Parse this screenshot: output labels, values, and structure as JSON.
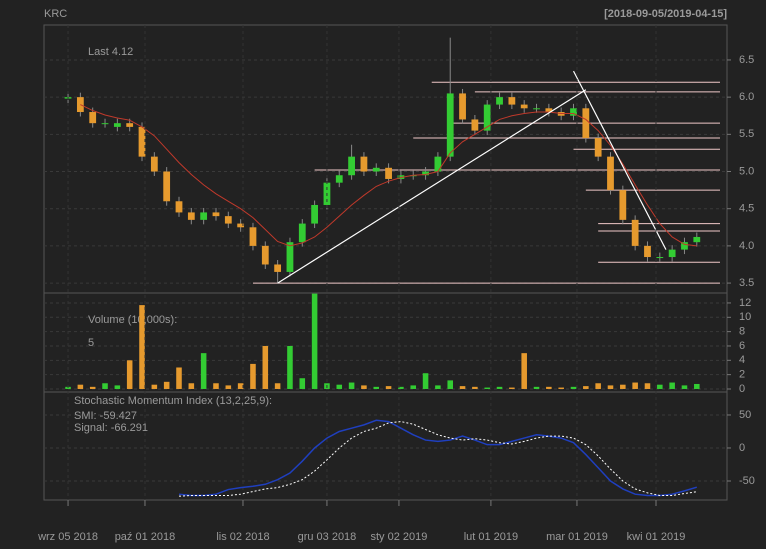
{
  "chart_data": [
    {
      "type": "candlestick",
      "title": "KRC",
      "subtitle": "[2018-09-05/2019-04-15]",
      "annotation": "Last 4.12",
      "up_color": "#33cc33",
      "down_color": "#e69a2e",
      "xlim": [
        -1.95,
        53.45
      ],
      "ylim": [
        3.38,
        6.97
      ],
      "yticks": [
        3.5,
        {
          "value": 4,
          "label": "4.0"
        },
        4.5,
        {
          "value": 5,
          "label": "5.0"
        },
        5.5,
        {
          "value": 6,
          "label": "6.0"
        },
        6.5
      ],
      "grid": true,
      "open": [
        5.98,
        6.0,
        5.8,
        5.65,
        5.6,
        5.65,
        5.6,
        5.2,
        5.0,
        4.6,
        4.45,
        4.35,
        4.45,
        4.4,
        4.3,
        4.25,
        4.0,
        3.75,
        3.65,
        4.05,
        4.3,
        4.55,
        4.85,
        4.95,
        5.2,
        5.0,
        5.05,
        4.9,
        4.95,
        4.95,
        5.0,
        5.2,
        6.05,
        5.7,
        5.55,
        5.9,
        6.0,
        5.9,
        5.85,
        5.85,
        5.8,
        5.75,
        5.85,
        5.45,
        5.2,
        4.75,
        4.35,
        4.0,
        3.85,
        3.85,
        3.95,
        4.05
      ],
      "high": [
        6.06,
        6.06,
        5.86,
        5.71,
        5.71,
        5.71,
        5.66,
        5.26,
        5.06,
        4.66,
        4.51,
        4.51,
        4.51,
        4.46,
        4.36,
        4.31,
        4.06,
        3.81,
        4.11,
        4.36,
        4.61,
        4.91,
        5.01,
        5.36,
        5.26,
        5.11,
        5.11,
        5.01,
        5.01,
        5.06,
        5.26,
        6.8,
        6.11,
        5.76,
        5.96,
        6.06,
        6.06,
        5.96,
        5.91,
        5.91,
        5.86,
        5.91,
        5.91,
        5.51,
        5.26,
        4.81,
        4.41,
        4.06,
        3.91,
        4.01,
        4.11,
        4.18
      ],
      "low": [
        5.92,
        5.74,
        5.59,
        5.59,
        5.54,
        5.54,
        5.14,
        4.94,
        4.54,
        4.39,
        4.29,
        4.29,
        4.34,
        4.24,
        4.19,
        3.94,
        3.69,
        3.5,
        3.59,
        3.99,
        4.24,
        4.49,
        4.79,
        4.89,
        4.94,
        4.94,
        4.84,
        4.84,
        4.89,
        4.89,
        4.94,
        5.14,
        5.64,
        5.49,
        5.49,
        5.84,
        5.84,
        5.79,
        5.79,
        5.74,
        5.69,
        5.69,
        5.39,
        5.14,
        4.69,
        4.29,
        3.94,
        3.79,
        3.79,
        3.79,
        3.89,
        3.99
      ],
      "close": [
        6.0,
        5.8,
        5.65,
        5.65,
        5.65,
        5.6,
        5.2,
        5.0,
        4.6,
        4.45,
        4.35,
        4.45,
        4.4,
        4.3,
        4.25,
        4.0,
        3.75,
        3.65,
        4.05,
        4.3,
        4.55,
        4.85,
        4.95,
        5.2,
        5.0,
        5.05,
        4.9,
        4.95,
        4.95,
        5.0,
        5.2,
        6.05,
        5.7,
        5.55,
        5.9,
        6.0,
        5.9,
        5.85,
        5.85,
        5.8,
        5.75,
        5.85,
        5.45,
        5.2,
        4.75,
        4.35,
        4.0,
        3.85,
        3.85,
        3.95,
        4.05,
        4.12
      ],
      "ma": {
        "color": "#c0392b",
        "values": [
          null,
          5.9,
          5.82,
          5.76,
          5.72,
          5.69,
          5.6,
          5.48,
          5.3,
          5.12,
          4.96,
          4.82,
          4.7,
          4.6,
          4.5,
          4.38,
          4.22,
          4.06,
          4.0,
          4.04,
          4.12,
          4.25,
          4.4,
          4.55,
          4.68,
          4.8,
          4.87,
          4.92,
          4.95,
          4.96,
          5.0,
          5.25,
          5.4,
          5.5,
          5.6,
          5.7,
          5.75,
          5.78,
          5.8,
          5.8,
          5.78,
          5.78,
          5.7,
          5.55,
          5.35,
          5.1,
          4.82,
          4.55,
          4.3,
          4.12,
          4.02,
          4.0
        ]
      },
      "hlines": [
        {
          "value": 6.2,
          "from": 29.5
        },
        {
          "value": 6.07,
          "from": 33
        },
        {
          "value": 5.65,
          "from": 31
        },
        {
          "value": 5.45,
          "from": 28
        },
        {
          "value": 5.3,
          "from": 41
        },
        {
          "value": 5.02,
          "from": 20
        },
        {
          "value": 4.75,
          "from": 42
        },
        {
          "value": 4.3,
          "from": 43
        },
        {
          "value": 4.2,
          "from": 43
        },
        {
          "value": 3.78,
          "from": 43
        },
        {
          "value": 3.5,
          "from": 15
        }
      ],
      "trendlines": [
        {
          "x0": 17,
          "y0": 3.5,
          "x1": 42,
          "y1": 6.1
        },
        {
          "x0": 41,
          "y0": 6.35,
          "x1": 48.5,
          "y1": 3.95
        }
      ]
    },
    {
      "type": "bar",
      "title": "Volume (10,000s):",
      "annotation": "5",
      "xlim": [
        -1.95,
        53.45
      ],
      "ylim": [
        -0.42,
        13.25
      ],
      "yticks": [
        0,
        2,
        4,
        6,
        8,
        10,
        12
      ],
      "grid": true,
      "values": [
        0.3,
        0.6,
        0.3,
        0.8,
        0.5,
        4.0,
        11.7,
        0.6,
        1.0,
        3.0,
        0.8,
        5.0,
        0.8,
        0.5,
        0.8,
        3.5,
        6.0,
        0.8,
        6.0,
        1.5,
        13.3,
        0.8,
        0.6,
        0.9,
        0.5,
        0.3,
        0.4,
        0.3,
        0.5,
        2.2,
        0.5,
        1.2,
        0.4,
        0.3,
        0.2,
        0.3,
        0.2,
        5.0,
        0.3,
        0.3,
        0.2,
        0.3,
        0.4,
        0.8,
        0.5,
        0.6,
        0.9,
        0.8,
        0.6,
        0.9,
        0.5,
        0.7
      ]
    },
    {
      "type": "line",
      "title": "Stochastic Momentum Index (13,2,25,9):",
      "xlim": [
        -1.95,
        53.45
      ],
      "ylim": [
        -78.8,
        84.8
      ],
      "yticks": [
        -50,
        0,
        50
      ],
      "grid": true,
      "xticks": [
        {
          "value": 0,
          "label": "wrz 05 2018"
        },
        {
          "value": 6.24,
          "label": "paź 01 2018"
        },
        {
          "value": 14.19,
          "label": "lis 02 2018"
        },
        {
          "value": 21.0,
          "label": "gru 03 2018"
        },
        {
          "value": 26.84,
          "label": "sty 02 2019"
        },
        {
          "value": 34.3,
          "label": "lut 01 2019"
        },
        {
          "value": 41.28,
          "label": "mar 01 2019"
        },
        {
          "value": 47.69,
          "label": "kwi 01 2019"
        }
      ],
      "series": [
        {
          "name": "SMI: -59.427",
          "color": "#1f3fbf",
          "values": [
            null,
            null,
            null,
            null,
            null,
            null,
            null,
            null,
            null,
            -70,
            -72,
            -72,
            -70,
            -63,
            -60,
            -58,
            -55,
            -48,
            -38,
            -20,
            0,
            15,
            25,
            30,
            35,
            42,
            40,
            30,
            20,
            12,
            10,
            12,
            18,
            12,
            5,
            5,
            10,
            15,
            20,
            18,
            15,
            8,
            -10,
            -30,
            -50,
            -62,
            -70,
            -72,
            -72,
            -70,
            -65,
            -59.427
          ]
        },
        {
          "name": "Signal: -66.291",
          "color": "#ffffff",
          "dashed": true,
          "values": [
            null,
            null,
            null,
            null,
            null,
            null,
            null,
            null,
            null,
            -73,
            -72,
            -72,
            -72,
            -72,
            -70,
            -66,
            -62,
            -60,
            -55,
            -48,
            -35,
            -18,
            0,
            15,
            25,
            30,
            38,
            40,
            36,
            28,
            20,
            15,
            12,
            14,
            12,
            8,
            6,
            10,
            15,
            18,
            18,
            15,
            5,
            -12,
            -32,
            -50,
            -62,
            -68,
            -72,
            -72,
            -69,
            -66.291
          ]
        }
      ]
    }
  ]
}
